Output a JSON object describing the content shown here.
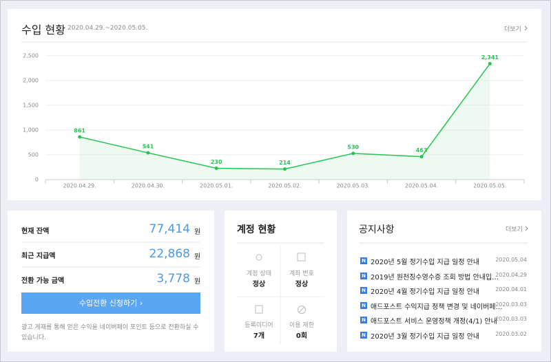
{
  "chart_data": {
    "type": "line",
    "title": "수입 현황",
    "subtitle": "2020.04.29.~2020.05.05.",
    "more": "더보기",
    "categories": [
      "2020.04.29.",
      "2020.04.30.",
      "2020.05.01.",
      "2020.05.02.",
      "2020.05.03.",
      "2020.05.04.",
      "2020.05.05."
    ],
    "values": [
      861,
      541,
      230,
      214,
      530,
      463,
      2341
    ],
    "value_labels": [
      "861",
      "541",
      "230",
      "214",
      "530",
      "463",
      "2,341"
    ],
    "color": "#23c552",
    "ylim": [
      0,
      2500
    ],
    "yticks": [
      0,
      500,
      {
        "value": 1000,
        "label": "1,000"
      },
      {
        "value": 1500,
        "label": "1,500"
      },
      {
        "value": 2000,
        "label": "2,000"
      },
      {
        "value": 2500,
        "label": "2,500"
      }
    ],
    "grid": true
  },
  "balance": {
    "rows": [
      {
        "label": "현재 잔액",
        "amount": "77,414",
        "unit": "원"
      },
      {
        "label": "최근 지급액",
        "amount": "22,868",
        "unit": "원"
      },
      {
        "label": "전환 가능 금액",
        "amount": "3,778",
        "unit": "원"
      }
    ],
    "button": "수입전환 신청하기",
    "note": "광고 게재를 통해 얻은 수익을 네이버페이 포인트 등으로 전환하실 수 있습니다."
  },
  "account": {
    "title": "계정 현황",
    "items": [
      {
        "label": "계정 상태",
        "value": "정상"
      },
      {
        "label": "계좌 번호",
        "value": "정상"
      },
      {
        "label": "등록미디어",
        "value": "7개"
      },
      {
        "label": "이용 제한",
        "value": "0회"
      }
    ]
  },
  "notices": {
    "title": "공지사항",
    "more": "더보기",
    "badge": "N",
    "items": [
      {
        "title": "2020년 5월 정기수입 지급 일정 안내",
        "date": "2020.05.04"
      },
      {
        "title": "2019년 원천징수영수증 조회 방법 안내입…",
        "date": "2020.04.29"
      },
      {
        "title": "2020년 4월 정기수입 지급 일정 안내",
        "date": "2020.04.01"
      },
      {
        "title": "애드포스트 수익지급 정책 변경 및 네이버페…",
        "date": "2020.03.03"
      },
      {
        "title": "애드포스트 서비스 운영정책 개정(4/1) 안내",
        "date": "2020.03.03"
      },
      {
        "title": "2020년 3월 정기수입 지급 일정 안내",
        "date": "2020.03.02"
      }
    ]
  }
}
